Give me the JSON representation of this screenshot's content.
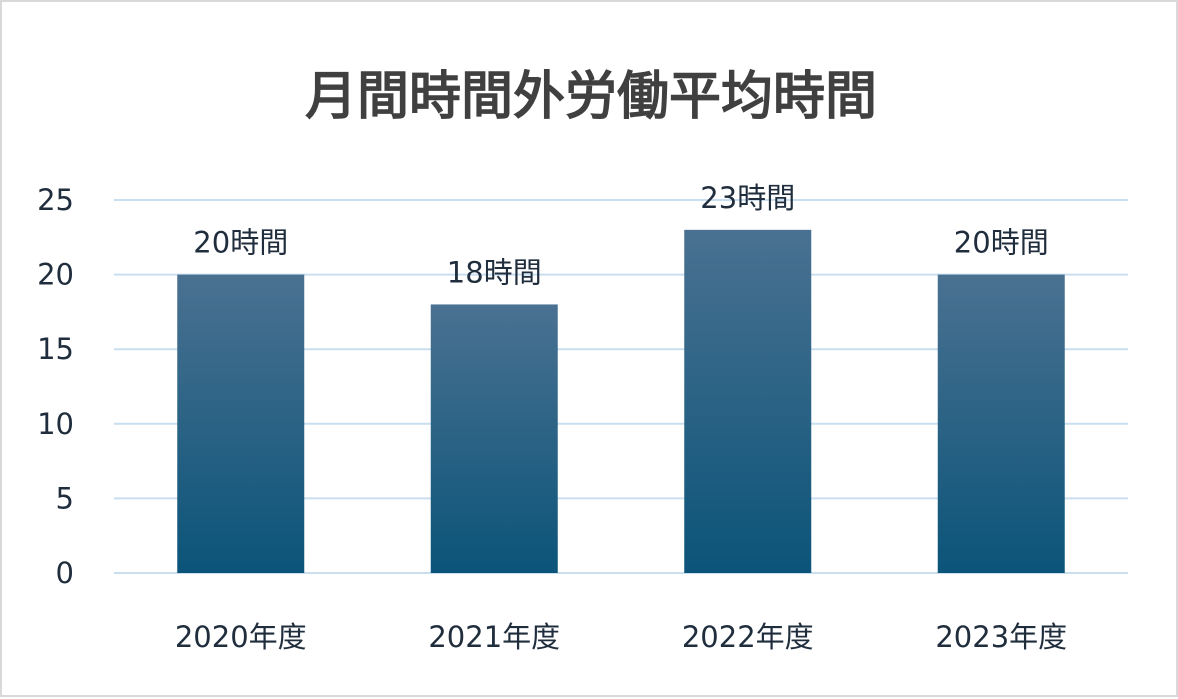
{
  "chart_data": {
    "type": "bar",
    "title": "月間時間外労働平均時間",
    "categories": [
      "2020年度",
      "2021年度",
      "2022年度",
      "2023年度"
    ],
    "values": [
      20,
      18,
      23,
      20
    ],
    "data_labels": [
      "20時間",
      "18時間",
      "23時間",
      "20時間"
    ],
    "y_ticks": [
      "0",
      "5",
      "10",
      "15",
      "20",
      "25"
    ],
    "ylim": [
      0,
      25
    ],
    "grid": true,
    "legend": "none",
    "colors": {
      "bar_top": "#4a7191",
      "bar_bottom": "#0b5479",
      "grid": "#c9dff0",
      "text": "#1f2d3d",
      "title": "#404040"
    }
  }
}
